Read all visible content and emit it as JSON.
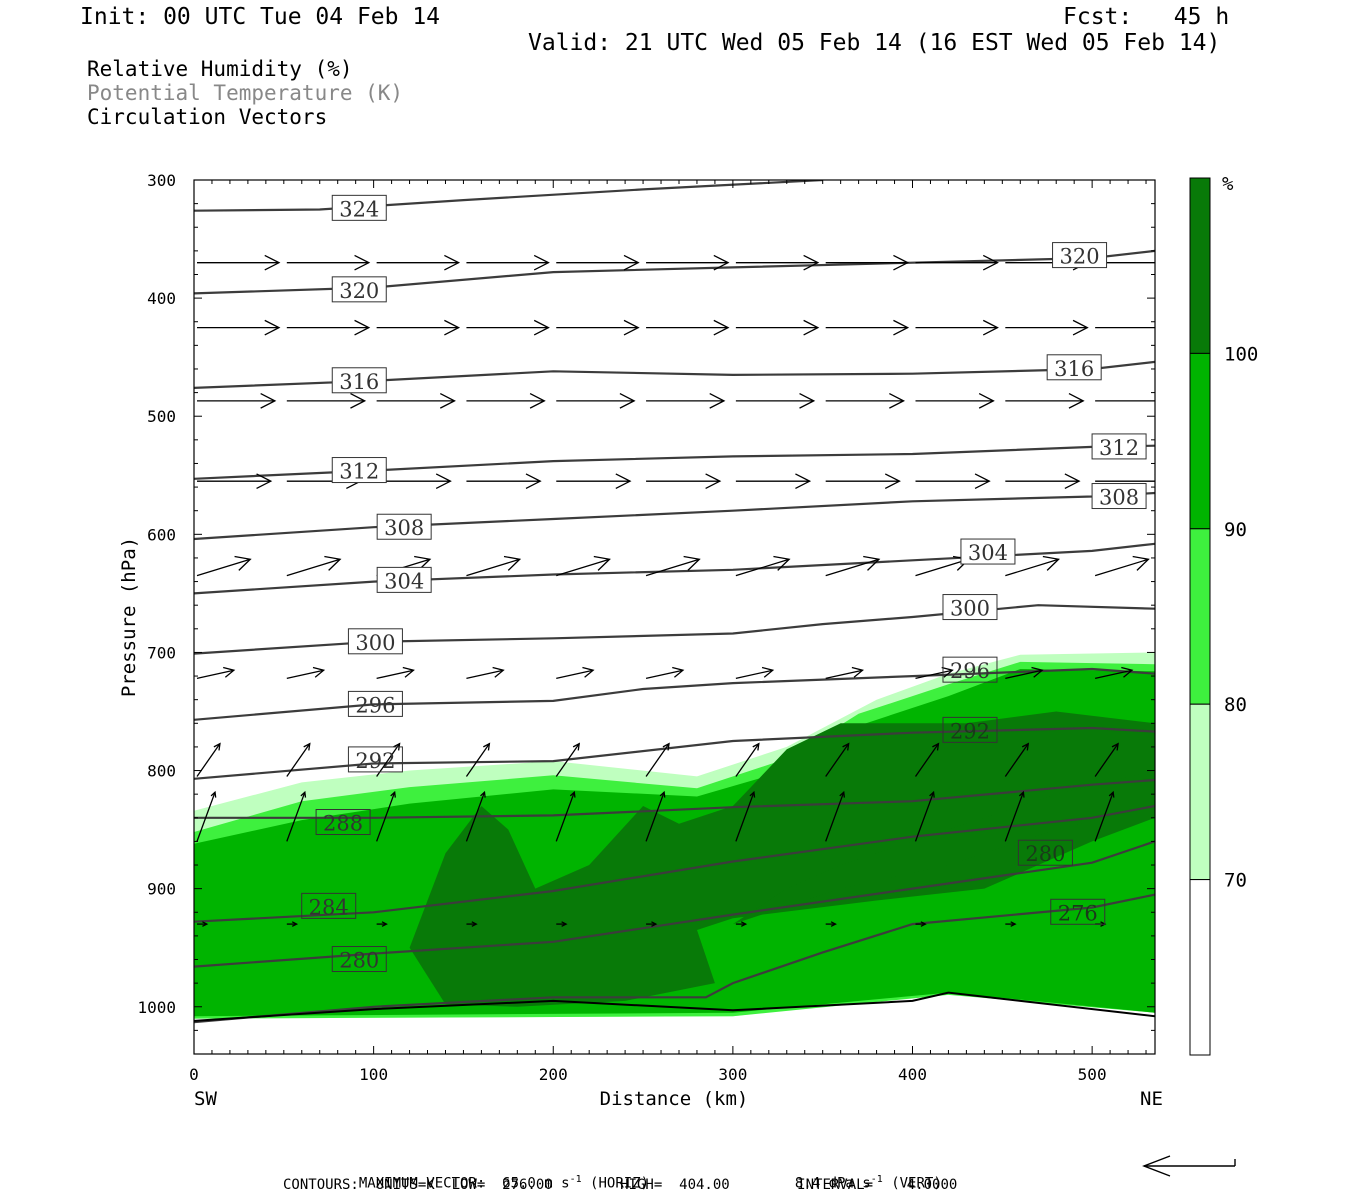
{
  "header": {
    "init": "Init: 00 UTC Tue 04 Feb 14",
    "fcst": "Fcst:   45 h",
    "valid": "Valid: 21 UTC Wed 05 Feb 14 (16 EST Wed 05 Feb 14)"
  },
  "legend_lines": {
    "rh": "Relative Humidity (%)",
    "theta": "Potential Temperature (K)",
    "vectors": "Circulation Vectors"
  },
  "colors": {
    "rh70": "#bfffbf",
    "rh80": "#3ef03e",
    "rh90": "#00b400",
    "rh100": "#087a08",
    "contour": "#3c3c3c",
    "vector": "#000000"
  },
  "chart_data": {
    "type": "cross-section",
    "xlabel": "Distance (km)",
    "ylabel": "Pressure (hPa)",
    "x_ticks": [
      0,
      100,
      200,
      300,
      400,
      500
    ],
    "y_ticks": [
      300,
      400,
      500,
      600,
      700,
      800,
      900,
      1000
    ],
    "xlim": [
      0,
      535
    ],
    "ylim": [
      300,
      1040
    ],
    "y_inverted": true,
    "x_start_label": "SW",
    "x_end_label": "NE",
    "colorbar": {
      "unit": "%",
      "levels": [
        70,
        80,
        90,
        100
      ],
      "tick_labels": [
        "70",
        "80",
        "90",
        "100"
      ]
    },
    "theta_contours": [
      {
        "value": 324,
        "label": "324",
        "points": [
          [
            0,
            326
          ],
          [
            70,
            325
          ],
          [
            150,
            317
          ],
          [
            250,
            308
          ],
          [
            350,
            300
          ]
        ]
      },
      {
        "value": 320,
        "label": "320",
        "points": [
          [
            0,
            396
          ],
          [
            100,
            391
          ],
          [
            200,
            378
          ],
          [
            300,
            374
          ],
          [
            400,
            370
          ],
          [
            500,
            366
          ],
          [
            535,
            360
          ]
        ]
      },
      {
        "value": 316,
        "label": "316",
        "points": [
          [
            0,
            476
          ],
          [
            100,
            470
          ],
          [
            200,
            462
          ],
          [
            300,
            465
          ],
          [
            400,
            464
          ],
          [
            500,
            460
          ],
          [
            535,
            454
          ]
        ]
      },
      {
        "value": 312,
        "label": "312",
        "points": [
          [
            0,
            553
          ],
          [
            100,
            546
          ],
          [
            200,
            538
          ],
          [
            300,
            534
          ],
          [
            400,
            532
          ],
          [
            500,
            526
          ],
          [
            535,
            525
          ]
        ]
      },
      {
        "value": 308,
        "label": "308",
        "points": [
          [
            0,
            604
          ],
          [
            100,
            594
          ],
          [
            200,
            587
          ],
          [
            300,
            580
          ],
          [
            400,
            572
          ],
          [
            500,
            568
          ],
          [
            535,
            565
          ]
        ]
      },
      {
        "value": 304,
        "label": "304",
        "points": [
          [
            0,
            650
          ],
          [
            100,
            640
          ],
          [
            200,
            634
          ],
          [
            300,
            630
          ],
          [
            400,
            622
          ],
          [
            500,
            614
          ],
          [
            535,
            608
          ]
        ]
      },
      {
        "value": 300,
        "label": "300",
        "points": [
          [
            0,
            701
          ],
          [
            100,
            691
          ],
          [
            200,
            688
          ],
          [
            300,
            684
          ],
          [
            350,
            676
          ],
          [
            400,
            670
          ],
          [
            470,
            660
          ],
          [
            535,
            663
          ]
        ]
      },
      {
        "value": 296,
        "label": "296",
        "points": [
          [
            0,
            757
          ],
          [
            100,
            744
          ],
          [
            200,
            741
          ],
          [
            250,
            731
          ],
          [
            300,
            726
          ],
          [
            400,
            720
          ],
          [
            500,
            714
          ],
          [
            535,
            718
          ]
        ]
      },
      {
        "value": 292,
        "label": "292",
        "points": [
          [
            0,
            807
          ],
          [
            100,
            794
          ],
          [
            200,
            792
          ],
          [
            300,
            775
          ],
          [
            400,
            768
          ],
          [
            500,
            764
          ],
          [
            535,
            767
          ]
        ]
      },
      {
        "value": 288,
        "label": "288",
        "points": [
          [
            0,
            840
          ],
          [
            100,
            840
          ],
          [
            200,
            838
          ],
          [
            300,
            831
          ],
          [
            400,
            826
          ],
          [
            500,
            812
          ],
          [
            535,
            808
          ]
        ]
      },
      {
        "value": 284,
        "label": "284",
        "points": [
          [
            0,
            928
          ],
          [
            100,
            920
          ],
          [
            200,
            902
          ],
          [
            300,
            877
          ],
          [
            400,
            856
          ],
          [
            500,
            840
          ],
          [
            535,
            830
          ]
        ]
      },
      {
        "value": 280,
        "label": "280",
        "points": [
          [
            0,
            966
          ],
          [
            100,
            955
          ],
          [
            200,
            945
          ],
          [
            300,
            922
          ],
          [
            400,
            900
          ],
          [
            500,
            878
          ],
          [
            535,
            860
          ]
        ]
      },
      {
        "value": 276,
        "label": "276",
        "points": [
          [
            0,
            1013
          ],
          [
            100,
            1000
          ],
          [
            200,
            992
          ],
          [
            285,
            992
          ],
          [
            300,
            980
          ],
          [
            350,
            954
          ],
          [
            400,
            930
          ],
          [
            500,
            916
          ],
          [
            535,
            905
          ]
        ]
      }
    ],
    "theta_labels": [
      {
        "text": "324",
        "x": 92,
        "p": 324
      },
      {
        "text": "320",
        "x": 92,
        "p": 393
      },
      {
        "text": "320",
        "x": 493,
        "p": 364
      },
      {
        "text": "316",
        "x": 92,
        "p": 470
      },
      {
        "text": "316",
        "x": 490,
        "p": 459
      },
      {
        "text": "312",
        "x": 92,
        "p": 546
      },
      {
        "text": "312",
        "x": 515,
        "p": 526
      },
      {
        "text": "308",
        "x": 117,
        "p": 594
      },
      {
        "text": "308",
        "x": 515,
        "p": 568
      },
      {
        "text": "304",
        "x": 117,
        "p": 639
      },
      {
        "text": "304",
        "x": 442,
        "p": 615
      },
      {
        "text": "300",
        "x": 101,
        "p": 691
      },
      {
        "text": "300",
        "x": 432,
        "p": 662
      },
      {
        "text": "296",
        "x": 101,
        "p": 744
      },
      {
        "text": "296",
        "x": 432,
        "p": 715
      },
      {
        "text": "292",
        "x": 101,
        "p": 791
      },
      {
        "text": "292",
        "x": 432,
        "p": 766
      },
      {
        "text": "288",
        "x": 83,
        "p": 844
      },
      {
        "text": "284",
        "x": 75,
        "p": 915
      },
      {
        "text": "280",
        "x": 92,
        "p": 960
      },
      {
        "text": "280",
        "x": 474,
        "p": 870
      },
      {
        "text": "276",
        "x": 492,
        "p": 920
      }
    ],
    "rh_fields": {
      "rh70": [
        [
          0,
          834
        ],
        [
          60,
          810
        ],
        [
          120,
          800
        ],
        [
          200,
          792
        ],
        [
          280,
          805
        ],
        [
          330,
          780
        ],
        [
          380,
          740
        ],
        [
          420,
          718
        ],
        [
          460,
          702
        ],
        [
          535,
          700
        ],
        [
          535,
          1005
        ],
        [
          420,
          988
        ],
        [
          300,
          1008
        ],
        [
          0,
          1010
        ]
      ],
      "rh80": [
        [
          0,
          852
        ],
        [
          60,
          826
        ],
        [
          120,
          814
        ],
        [
          200,
          804
        ],
        [
          280,
          815
        ],
        [
          330,
          790
        ],
        [
          370,
          752
        ],
        [
          420,
          727
        ],
        [
          460,
          708
        ],
        [
          535,
          710
        ],
        [
          535,
          1005
        ],
        [
          420,
          990
        ],
        [
          300,
          1008
        ],
        [
          0,
          1010
        ]
      ],
      "rh90": [
        [
          0,
          862
        ],
        [
          60,
          842
        ],
        [
          120,
          828
        ],
        [
          200,
          816
        ],
        [
          280,
          822
        ],
        [
          330,
          800
        ],
        [
          370,
          762
        ],
        [
          420,
          737
        ],
        [
          460,
          714
        ],
        [
          535,
          716
        ],
        [
          535,
          1005
        ],
        [
          420,
          988
        ],
        [
          300,
          1005
        ],
        [
          0,
          1008
        ]
      ],
      "rh100": [
        [
          120,
          950
        ],
        [
          140,
          870
        ],
        [
          160,
          830
        ],
        [
          175,
          850
        ],
        [
          190,
          900
        ],
        [
          220,
          880
        ],
        [
          250,
          830
        ],
        [
          270,
          845
        ],
        [
          300,
          830
        ],
        [
          330,
          782
        ],
        [
          360,
          760
        ],
        [
          430,
          760
        ],
        [
          480,
          750
        ],
        [
          535,
          760
        ],
        [
          535,
          840
        ],
        [
          500,
          860
        ],
        [
          440,
          900
        ],
        [
          380,
          910
        ],
        [
          300,
          925
        ],
        [
          280,
          935
        ],
        [
          290,
          980
        ],
        [
          240,
          995
        ],
        [
          180,
          1000
        ],
        [
          140,
          998
        ]
      ],
      "rh100b": [
        [
          300,
          930
        ],
        [
          330,
          900
        ],
        [
          360,
          880
        ],
        [
          400,
          860
        ],
        [
          440,
          840
        ],
        [
          480,
          820
        ],
        [
          535,
          800
        ],
        [
          535,
          830
        ],
        [
          480,
          850
        ],
        [
          420,
          880
        ],
        [
          360,
          900
        ],
        [
          300,
          930
        ]
      ]
    },
    "vector_rows": [
      {
        "p": 370,
        "u": 1.0,
        "v": 0.0
      },
      {
        "p": 425,
        "u": 1.0,
        "v": 0.0
      },
      {
        "p": 487,
        "u": 0.95,
        "v": 0.0
      },
      {
        "p": 555,
        "u": 0.9,
        "v": 0.0
      },
      {
        "p": 635,
        "u": 0.65,
        "v": -0.02
      },
      {
        "p": 722,
        "u": 0.45,
        "v": -0.01
      },
      {
        "p": 805,
        "u": 0.28,
        "v": -0.04
      },
      {
        "p": 860,
        "u": 0.22,
        "v": -0.06
      },
      {
        "p": 930,
        "u": 0.12,
        "v": 0.0
      }
    ],
    "vector_x": [
      0,
      50,
      100,
      150,
      200,
      250,
      300,
      350,
      400,
      450,
      500
    ]
  },
  "footer": {
    "max_vector_label": "MAXIMUM VECTOR:  65.0 m s",
    "exp_horiz": "-1",
    "horiz": " (HORIZ)",
    "vert_value": "8.4 dPa s",
    "exp_vert": "-1",
    "vert": " (VERT)",
    "contours": "CONTOURS:  UNITS=K  LOW=  276.00        HIGH=  404.00        INTERVAL=    4.0000"
  }
}
